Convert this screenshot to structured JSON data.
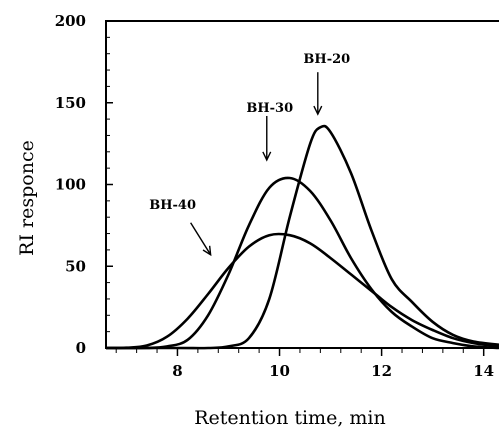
{
  "chart_data": {
    "type": "line",
    "title": "",
    "xlabel": "Retention time, min",
    "ylabel": "RI responce",
    "xlim": [
      6.6,
      14.3
    ],
    "ylim": [
      0,
      200
    ],
    "x_ticks": [
      8,
      10,
      12,
      14
    ],
    "x_tick_labels": [
      "8",
      "10",
      "12",
      "14"
    ],
    "y_ticks": [
      0,
      50,
      100,
      150,
      200
    ],
    "y_tick_labels": [
      "0",
      "50",
      "100",
      "150",
      "200"
    ],
    "grid": false,
    "series": [
      {
        "name": "BH-40",
        "x": [
          6.6,
          7.0,
          7.4,
          7.8,
          8.2,
          8.6,
          9.0,
          9.4,
          9.8,
          10.2,
          10.6,
          11.0,
          11.4,
          11.8,
          12.2,
          12.6,
          13.0,
          13.4,
          13.8,
          14.3
        ],
        "y": [
          0,
          0.2,
          1.5,
          7,
          18,
          33,
          49,
          62,
          69,
          69,
          64,
          55,
          45,
          35,
          25,
          17,
          11,
          6,
          3,
          1
        ]
      },
      {
        "name": "BH-30",
        "x": [
          6.6,
          7.4,
          7.8,
          8.2,
          8.6,
          9.0,
          9.4,
          9.8,
          10.2,
          10.6,
          11.0,
          11.4,
          11.8,
          12.2,
          12.6,
          13.0,
          13.4,
          13.8,
          14.3
        ],
        "y": [
          0,
          0,
          1,
          5,
          20,
          45,
          75,
          98,
          104,
          96,
          78,
          55,
          36,
          22,
          13,
          6,
          3,
          1,
          0
        ]
      },
      {
        "name": "BH-20",
        "x": [
          6.6,
          8.0,
          8.6,
          9.0,
          9.4,
          9.8,
          10.2,
          10.6,
          10.8,
          11.0,
          11.4,
          11.8,
          12.2,
          12.6,
          13.0,
          13.4,
          13.8,
          14.3
        ],
        "y": [
          0,
          0,
          0,
          1,
          6,
          30,
          80,
          125,
          135,
          132,
          107,
          72,
          42,
          28,
          16,
          8,
          4,
          2
        ]
      }
    ],
    "annotations": [
      {
        "text": "BH-40",
        "series": "BH-40",
        "arrow_x": 8.65,
        "arrow_y": 57
      },
      {
        "text": "BH-30",
        "series": "BH-30",
        "arrow_x": 9.75,
        "arrow_y": 115
      },
      {
        "text": "BH-20",
        "series": "BH-20",
        "arrow_x": 10.75,
        "arrow_y": 143
      }
    ],
    "colors": {
      "line": "#000000",
      "axis": "#000000",
      "background": "#ffffff"
    }
  }
}
